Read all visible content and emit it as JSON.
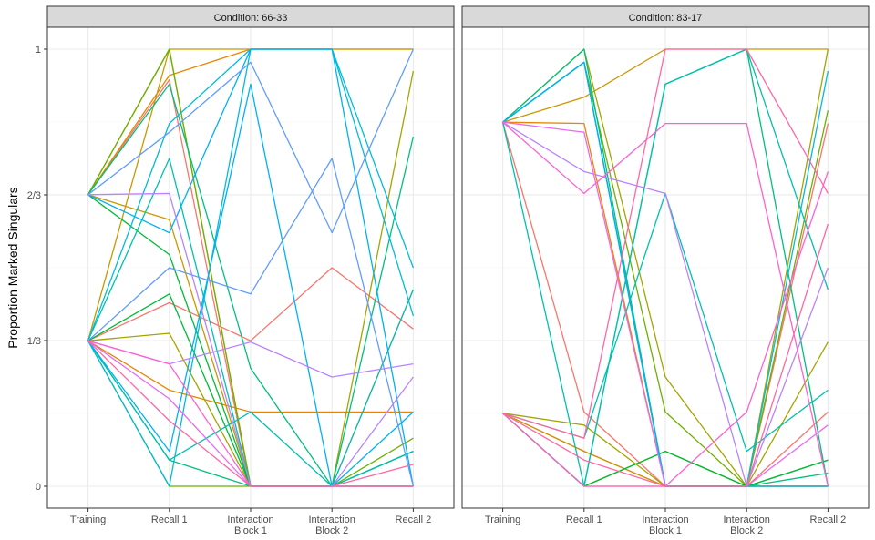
{
  "chart_data": {
    "type": "line",
    "ylabel": "Proportion Marked Singulars",
    "xlabel": "",
    "categories": [
      "Training",
      "Recall 1",
      "Interaction\nBlock 1",
      "Interaction\nBlock 2",
      "Recall 2"
    ],
    "yticks": [
      {
        "value": 0,
        "label": "0"
      },
      {
        "value": 0.3333,
        "label": "1/3"
      },
      {
        "value": 0.6667,
        "label": "2/3"
      },
      {
        "value": 1,
        "label": "1"
      }
    ],
    "ylim": [
      -0.05,
      1.05
    ],
    "grid": true,
    "legend": "none",
    "colors": [
      "#F8766D",
      "#E58700",
      "#C99800",
      "#A3A500",
      "#6BB100",
      "#00BA38",
      "#00BF7D",
      "#00C0AF",
      "#00BCD8",
      "#00B0F6",
      "#619CFF",
      "#B983FF",
      "#E76BF3",
      "#FD61D1",
      "#FF67A4"
    ],
    "panels": [
      {
        "strip": "Condition: 66-33",
        "series": [
          {
            "color": "#F8766D",
            "values": [
              0.333,
              0.42,
              0.333,
              0.5,
              0.36
            ]
          },
          {
            "color": "#F8766D",
            "values": [
              0.667,
              0.93,
              0.0,
              0.0,
              0.45
            ]
          },
          {
            "color": "#E58700",
            "values": [
              0.333,
              0.22,
              0.17,
              0.17,
              0.17
            ]
          },
          {
            "color": "#E58700",
            "values": [
              0.667,
              0.94,
              1.0,
              1.0,
              1.0
            ]
          },
          {
            "color": "#C99800",
            "values": [
              0.667,
              0.61,
              0.0,
              0.0,
              0.0
            ]
          },
          {
            "color": "#C99800",
            "values": [
              0.333,
              1.0,
              1.0,
              1.0,
              1.0
            ]
          },
          {
            "color": "#A3A500",
            "values": [
              0.333,
              0.35,
              0.0,
              0.0,
              0.95
            ]
          },
          {
            "color": "#A3A500",
            "values": [
              0.667,
              1.0,
              0.0,
              0.0,
              0.0
            ]
          },
          {
            "color": "#6BB100",
            "values": [
              0.333,
              0.0,
              0.0,
              0.0,
              0.11
            ]
          },
          {
            "color": "#6BB100",
            "values": [
              0.667,
              1.0,
              0.0,
              0.0,
              0.0
            ]
          },
          {
            "color": "#00BA38",
            "values": [
              0.333,
              0.44,
              0.0,
              0.0,
              0.08
            ]
          },
          {
            "color": "#00BA38",
            "values": [
              0.667,
              0.53,
              0.0,
              0.0,
              0.0
            ]
          },
          {
            "color": "#00BF7D",
            "values": [
              0.333,
              0.06,
              0.0,
              0.0,
              0.08
            ]
          },
          {
            "color": "#00BF7D",
            "values": [
              0.667,
              0.92,
              0.27,
              0.0,
              0.8
            ]
          },
          {
            "color": "#00C0AF",
            "values": [
              0.333,
              0.75,
              0.0,
              0.0,
              0.45
            ]
          },
          {
            "color": "#00C0AF",
            "values": [
              0.333,
              0.06,
              0.17,
              0.0,
              0.08
            ]
          },
          {
            "color": "#00BCD8",
            "values": [
              0.333,
              0.83,
              1.0,
              1.0,
              0.5
            ]
          },
          {
            "color": "#00BCD8",
            "values": [
              0.333,
              0.0,
              1.0,
              1.0,
              0.39
            ]
          },
          {
            "color": "#00B0F6",
            "values": [
              0.667,
              0.58,
              1.0,
              1.0,
              0.0
            ]
          },
          {
            "color": "#00B0F6",
            "values": [
              0.333,
              0.08,
              0.92,
              0.0,
              0.17
            ]
          },
          {
            "color": "#619CFF",
            "values": [
              0.333,
              0.5,
              0.44,
              0.75,
              0.0
            ]
          },
          {
            "color": "#619CFF",
            "values": [
              0.667,
              0.81,
              0.97,
              0.58,
              1.0
            ]
          },
          {
            "color": "#B983FF",
            "values": [
              0.667,
              0.67,
              0.0,
              0.0,
              0.25
            ]
          },
          {
            "color": "#B983FF",
            "values": [
              0.333,
              0.28,
              0.33,
              0.25,
              0.28
            ]
          },
          {
            "color": "#E76BF3",
            "values": [
              0.333,
              0.2,
              0.0,
              0.0,
              0.0
            ]
          },
          {
            "color": "#FD61D1",
            "values": [
              0.333,
              0.28,
              0.0,
              0.0,
              0.0
            ]
          },
          {
            "color": "#FF67A4",
            "values": [
              0.333,
              0.15,
              0.0,
              0.0,
              0.05
            ]
          }
        ]
      },
      {
        "strip": "Condition: 83-17",
        "series": [
          {
            "color": "#F8766D",
            "values": [
              0.833,
              0.17,
              0.0,
              0.0,
              0.17
            ]
          },
          {
            "color": "#F8766D",
            "values": [
              0.167,
              0.08,
              0.0,
              0.0,
              0.83
            ]
          },
          {
            "color": "#E58700",
            "values": [
              0.833,
              0.83,
              0.0,
              0.0,
              0.0
            ]
          },
          {
            "color": "#E58700",
            "values": [
              0.167,
              0.0,
              0.0,
              0.0,
              0.0
            ]
          },
          {
            "color": "#C99800",
            "values": [
              0.833,
              0.89,
              1.0,
              1.0,
              1.0
            ]
          },
          {
            "color": "#C99800",
            "values": [
              0.167,
              0.08,
              0.0,
              0.0,
              0.0
            ]
          },
          {
            "color": "#A3A500",
            "values": [
              0.833,
              1.0,
              0.25,
              0.0,
              1.0
            ]
          },
          {
            "color": "#A3A500",
            "values": [
              0.167,
              0.14,
              0.0,
              0.0,
              0.33
            ]
          },
          {
            "color": "#6BB100",
            "values": [
              0.833,
              0.97,
              0.17,
              0.0,
              0.0
            ]
          },
          {
            "color": "#6BB100",
            "values": [
              0.167,
              0.0,
              0.08,
              0.0,
              0.86
            ]
          },
          {
            "color": "#00BA38",
            "values": [
              0.833,
              0.97,
              0.0,
              0.0,
              0.06
            ]
          },
          {
            "color": "#00BA38",
            "values": [
              0.167,
              0.0,
              0.08,
              0.0,
              0.06
            ]
          },
          {
            "color": "#00BF7D",
            "values": [
              0.833,
              1.0,
              0.0,
              0.0,
              0.03
            ]
          },
          {
            "color": "#00BF7D",
            "values": [
              0.167,
              0.0,
              0.92,
              1.0,
              0.0
            ]
          },
          {
            "color": "#00C0AF",
            "values": [
              0.833,
              0.0,
              0.92,
              1.0,
              0.45
            ]
          },
          {
            "color": "#00C0AF",
            "values": [
              0.167,
              0.11,
              0.67,
              0.08,
              0.22
            ]
          },
          {
            "color": "#00BCD8",
            "values": [
              0.833,
              0.97,
              0.0,
              0.0,
              0.95
            ]
          },
          {
            "color": "#00B0F6",
            "values": [
              0.833,
              0.97,
              0.0,
              0.0,
              0.0
            ]
          },
          {
            "color": "#B983FF",
            "values": [
              0.833,
              0.72,
              0.67,
              0.0,
              0.5
            ]
          },
          {
            "color": "#E76BF3",
            "values": [
              0.833,
              0.81,
              0.0,
              0.0,
              0.14
            ]
          },
          {
            "color": "#FD61D1",
            "values": [
              0.833,
              0.67,
              0.83,
              0.83,
              0.0
            ]
          },
          {
            "color": "#FD61D1",
            "values": [
              0.167,
              0.0,
              0.0,
              0.17,
              0.72
            ]
          },
          {
            "color": "#FF67A4",
            "values": [
              0.167,
              0.11,
              1.0,
              1.0,
              0.67
            ]
          },
          {
            "color": "#FF67A4",
            "values": [
              0.167,
              0.06,
              0.0,
              0.0,
              0.6
            ]
          }
        ]
      }
    ]
  }
}
